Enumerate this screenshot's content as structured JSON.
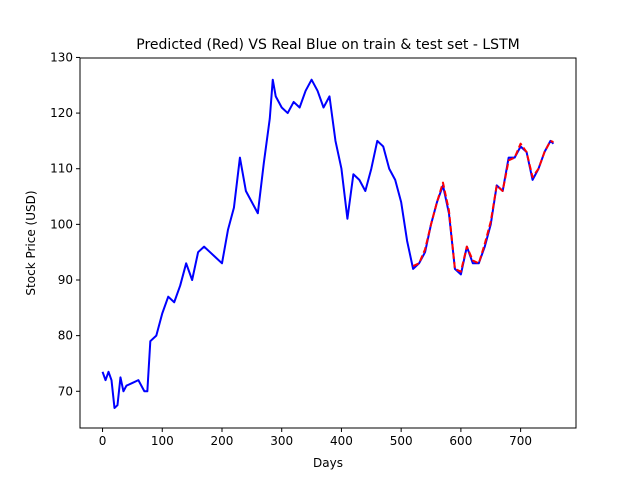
{
  "chart_data": {
    "type": "line",
    "title": "Predicted (Red) VS Real Blue on train & test set - LSTM",
    "xlabel": "Days",
    "ylabel": "Stock Price (USD)",
    "xlim": [
      -37.75,
      792.75
    ],
    "ylim": [
      63.4,
      129.9
    ],
    "xticks": [
      0,
      100,
      200,
      300,
      400,
      500,
      600,
      700
    ],
    "yticks": [
      70,
      80,
      90,
      100,
      110,
      120,
      130
    ],
    "series": [
      {
        "color": "#0000ff",
        "style": "solid",
        "x": [
          0,
          5,
          10,
          15,
          20,
          25,
          30,
          35,
          40,
          50,
          60,
          70,
          75,
          80,
          90,
          100,
          110,
          120,
          130,
          140,
          150,
          160,
          170,
          180,
          190,
          200,
          210,
          220,
          230,
          240,
          250,
          260,
          270,
          280,
          285,
          290,
          300,
          310,
          320,
          330,
          340,
          350,
          360,
          370,
          380,
          390,
          400,
          410,
          420,
          430,
          440,
          450,
          460,
          470,
          480,
          490,
          500,
          510,
          520,
          530,
          540,
          550,
          560,
          570,
          580,
          590,
          600,
          610,
          620,
          630,
          640,
          650,
          660,
          670,
          680,
          690,
          700,
          710,
          720,
          730,
          740,
          750,
          755
        ],
        "values": [
          73.5,
          72,
          73.5,
          72,
          67,
          67.5,
          72.5,
          70,
          71,
          71.5,
          72,
          70,
          70,
          79,
          80,
          84,
          87,
          86,
          89,
          93,
          90,
          95,
          96,
          95,
          94,
          93,
          99,
          103,
          112,
          106,
          104,
          102,
          111,
          119,
          126,
          123,
          121,
          120,
          122,
          121,
          124,
          126,
          124,
          121,
          123,
          115,
          110,
          101,
          109,
          108,
          106,
          110,
          115,
          114,
          110,
          108,
          104,
          97,
          92,
          93,
          95,
          100,
          104,
          107,
          102,
          92,
          91,
          96,
          93,
          93,
          96,
          100,
          107,
          106,
          112,
          112,
          114,
          113,
          108,
          110,
          113,
          115,
          114.5
        ]
      },
      {
        "color": "#ff0000",
        "style": "dashed",
        "x": [
          520,
          530,
          540,
          550,
          560,
          570,
          580,
          590,
          600,
          610,
          620,
          630,
          640,
          650,
          660,
          670,
          680,
          690,
          700,
          710,
          720,
          730,
          740,
          750,
          755
        ],
        "values": [
          92.5,
          93,
          95.5,
          100,
          104,
          107.5,
          102.5,
          92,
          91.5,
          96,
          93.5,
          93,
          96.5,
          100.5,
          107,
          106,
          111.5,
          112,
          114.5,
          113,
          108.5,
          110,
          113,
          115,
          114.8
        ]
      }
    ]
  }
}
